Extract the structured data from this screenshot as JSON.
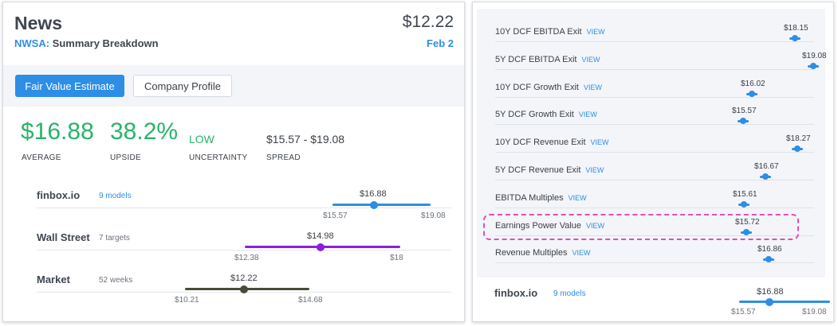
{
  "left": {
    "title": "News",
    "price": "$12.22",
    "ticker": "NWSA:",
    "subtitle": "Summary Breakdown",
    "date": "Feb 2",
    "tabs": [
      "Fair Value Estimate",
      "Company Profile"
    ],
    "stats": {
      "average": {
        "value": "$16.88",
        "label": "AVERAGE"
      },
      "upside": {
        "value": "38.2%",
        "label": "UPSIDE"
      },
      "uncertainty": {
        "value": "LOW",
        "label": "UNCERTAINTY"
      },
      "spread": {
        "value": "$15.57 - $19.08",
        "label": "SPREAD"
      }
    },
    "rows": [
      {
        "name": "finbox.io",
        "sub": "9 models",
        "value": "$16.88",
        "low": "$15.57",
        "high": "$19.08",
        "color": "#2d8ee6"
      },
      {
        "name": "Wall Street",
        "sub": "7 targets",
        "value": "$14.98",
        "low": "$12.38",
        "high": "$18",
        "color": "#8a1fe0"
      },
      {
        "name": "Market",
        "sub": "52 weeks",
        "value": "$12.22",
        "low": "$10.21",
        "high": "$14.68",
        "color": "#4a4a3a"
      }
    ]
  },
  "right": {
    "view_label": "VIEW",
    "models": [
      {
        "name": "10Y DCF EBITDA Exit",
        "value": "$18.15"
      },
      {
        "name": "5Y DCF EBITDA Exit",
        "value": "$19.08"
      },
      {
        "name": "10Y DCF Growth Exit",
        "value": "$16.02"
      },
      {
        "name": "5Y DCF Growth Exit",
        "value": "$15.57"
      },
      {
        "name": "10Y DCF Revenue Exit",
        "value": "$18.27"
      },
      {
        "name": "5Y DCF Revenue Exit",
        "value": "$16.67"
      },
      {
        "name": "EBITDA Multiples",
        "value": "$15.61"
      },
      {
        "name": "Earnings Power Value",
        "value": "$15.72"
      },
      {
        "name": "Revenue Multiples",
        "value": "$16.86"
      }
    ],
    "summary": {
      "name": "finbox.io",
      "sub": "9 models",
      "value": "$16.88",
      "low": "$15.57",
      "high": "$19.08"
    }
  },
  "colors": {
    "accent": "#2d8ee6",
    "positive": "#29b36a",
    "highlight": "#e24fb3"
  }
}
